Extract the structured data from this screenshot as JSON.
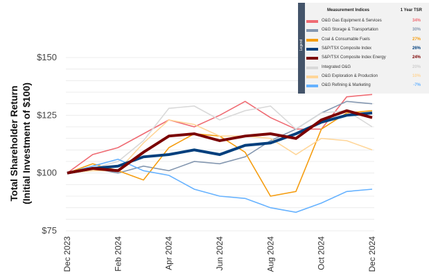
{
  "chart_data": {
    "type": "line",
    "title": "",
    "ylabel": "Total Shareholder Return",
    "ylabel_sub": "(Initial Investment of $100)",
    "xlabel": "",
    "ylim": [
      75,
      150
    ],
    "y_ticks": [
      {
        "value": 150,
        "label": "$150"
      },
      {
        "value": 125,
        "label": "$125"
      },
      {
        "value": 100,
        "label": "$100"
      },
      {
        "value": 75,
        "label": "$75"
      }
    ],
    "grid": true,
    "grid_step": 5,
    "x": [
      "Dec 2023",
      "Jan 2024",
      "Feb 2024",
      "Mar 2024",
      "Apr 2024",
      "May 2024",
      "Jun 2024",
      "Jul 2024",
      "Aug 2024",
      "Sep 2024",
      "Oct 2024",
      "Nov 2024",
      "Dec 2024"
    ],
    "x_tick_labels": [
      "Dec 2023",
      "Feb 2024",
      "Apr 2024",
      "Jun 2024",
      "Aug 2024",
      "Oct 2024",
      "Dec 2024"
    ],
    "legend": {
      "placement": "top-right",
      "side_label": "Legend",
      "header_name": "Measurement Indices",
      "header_value": "1 Year TSR"
    },
    "series": [
      {
        "name": "O&G Gas Equipment & Services",
        "tsr": "34%",
        "color": "#ef6b73",
        "value_color": "#ef6b73",
        "weight": "thin",
        "values": [
          100,
          108,
          111,
          117,
          123,
          120,
          125,
          131,
          124,
          119,
          119,
          133,
          134
        ]
      },
      {
        "name": "O&G Storage & Transportation",
        "tsr": "30%",
        "color": "#8497b0",
        "value_color": "#8497b0",
        "weight": "thin",
        "values": [
          100,
          102,
          100,
          103,
          101,
          105,
          104,
          107,
          114,
          119,
          126,
          131,
          130
        ]
      },
      {
        "name": "Coal & Consumable Fuels",
        "tsr": "27%",
        "color": "#f59d10",
        "value_color": "#f59d10",
        "weight": "thin",
        "values": [
          100,
          104,
          101,
          97,
          111,
          117,
          116,
          109,
          90,
          92,
          119,
          126,
          127
        ]
      },
      {
        "name": "S&P/TSX Composite Index",
        "tsr": "26%",
        "color": "#003f7d",
        "value_color": "#003f7d",
        "weight": "thick",
        "values": [
          100,
          102,
          103,
          107,
          108,
          110,
          108,
          112,
          113,
          117,
          122,
          125,
          126
        ]
      },
      {
        "name": "S&P/TSX Composite Index Energy",
        "tsr": "24%",
        "color": "#7a0000",
        "value_color": "#7a0000",
        "weight": "thick",
        "values": [
          100,
          102,
          101,
          109,
          116,
          117,
          114,
          116,
          117,
          115,
          123,
          127,
          124
        ]
      },
      {
        "name": "Integrated O&G",
        "tsr": "20%",
        "color": "#d9d9d9",
        "value_color": "#cfcfcf",
        "weight": "thin",
        "values": [
          100,
          102,
          105,
          114,
          128,
          129,
          123,
          127,
          129,
          119,
          126,
          127,
          120
        ]
      },
      {
        "name": "O&G Exploration & Production",
        "tsr": "10%",
        "color": "#ffd699",
        "value_color": "#ffd699",
        "weight": "thin",
        "values": [
          100,
          101,
          101,
          113,
          123,
          121,
          116,
          116,
          115,
          108,
          115,
          114,
          110
        ]
      },
      {
        "name": "O&G Refining & Marketing",
        "tsr": "-7%",
        "color": "#66b2ff",
        "value_color": "#66b2ff",
        "weight": "thin",
        "values": [
          100,
          103,
          106,
          101,
          99,
          93,
          90,
          89,
          85,
          83,
          87,
          92,
          93
        ]
      }
    ]
  }
}
